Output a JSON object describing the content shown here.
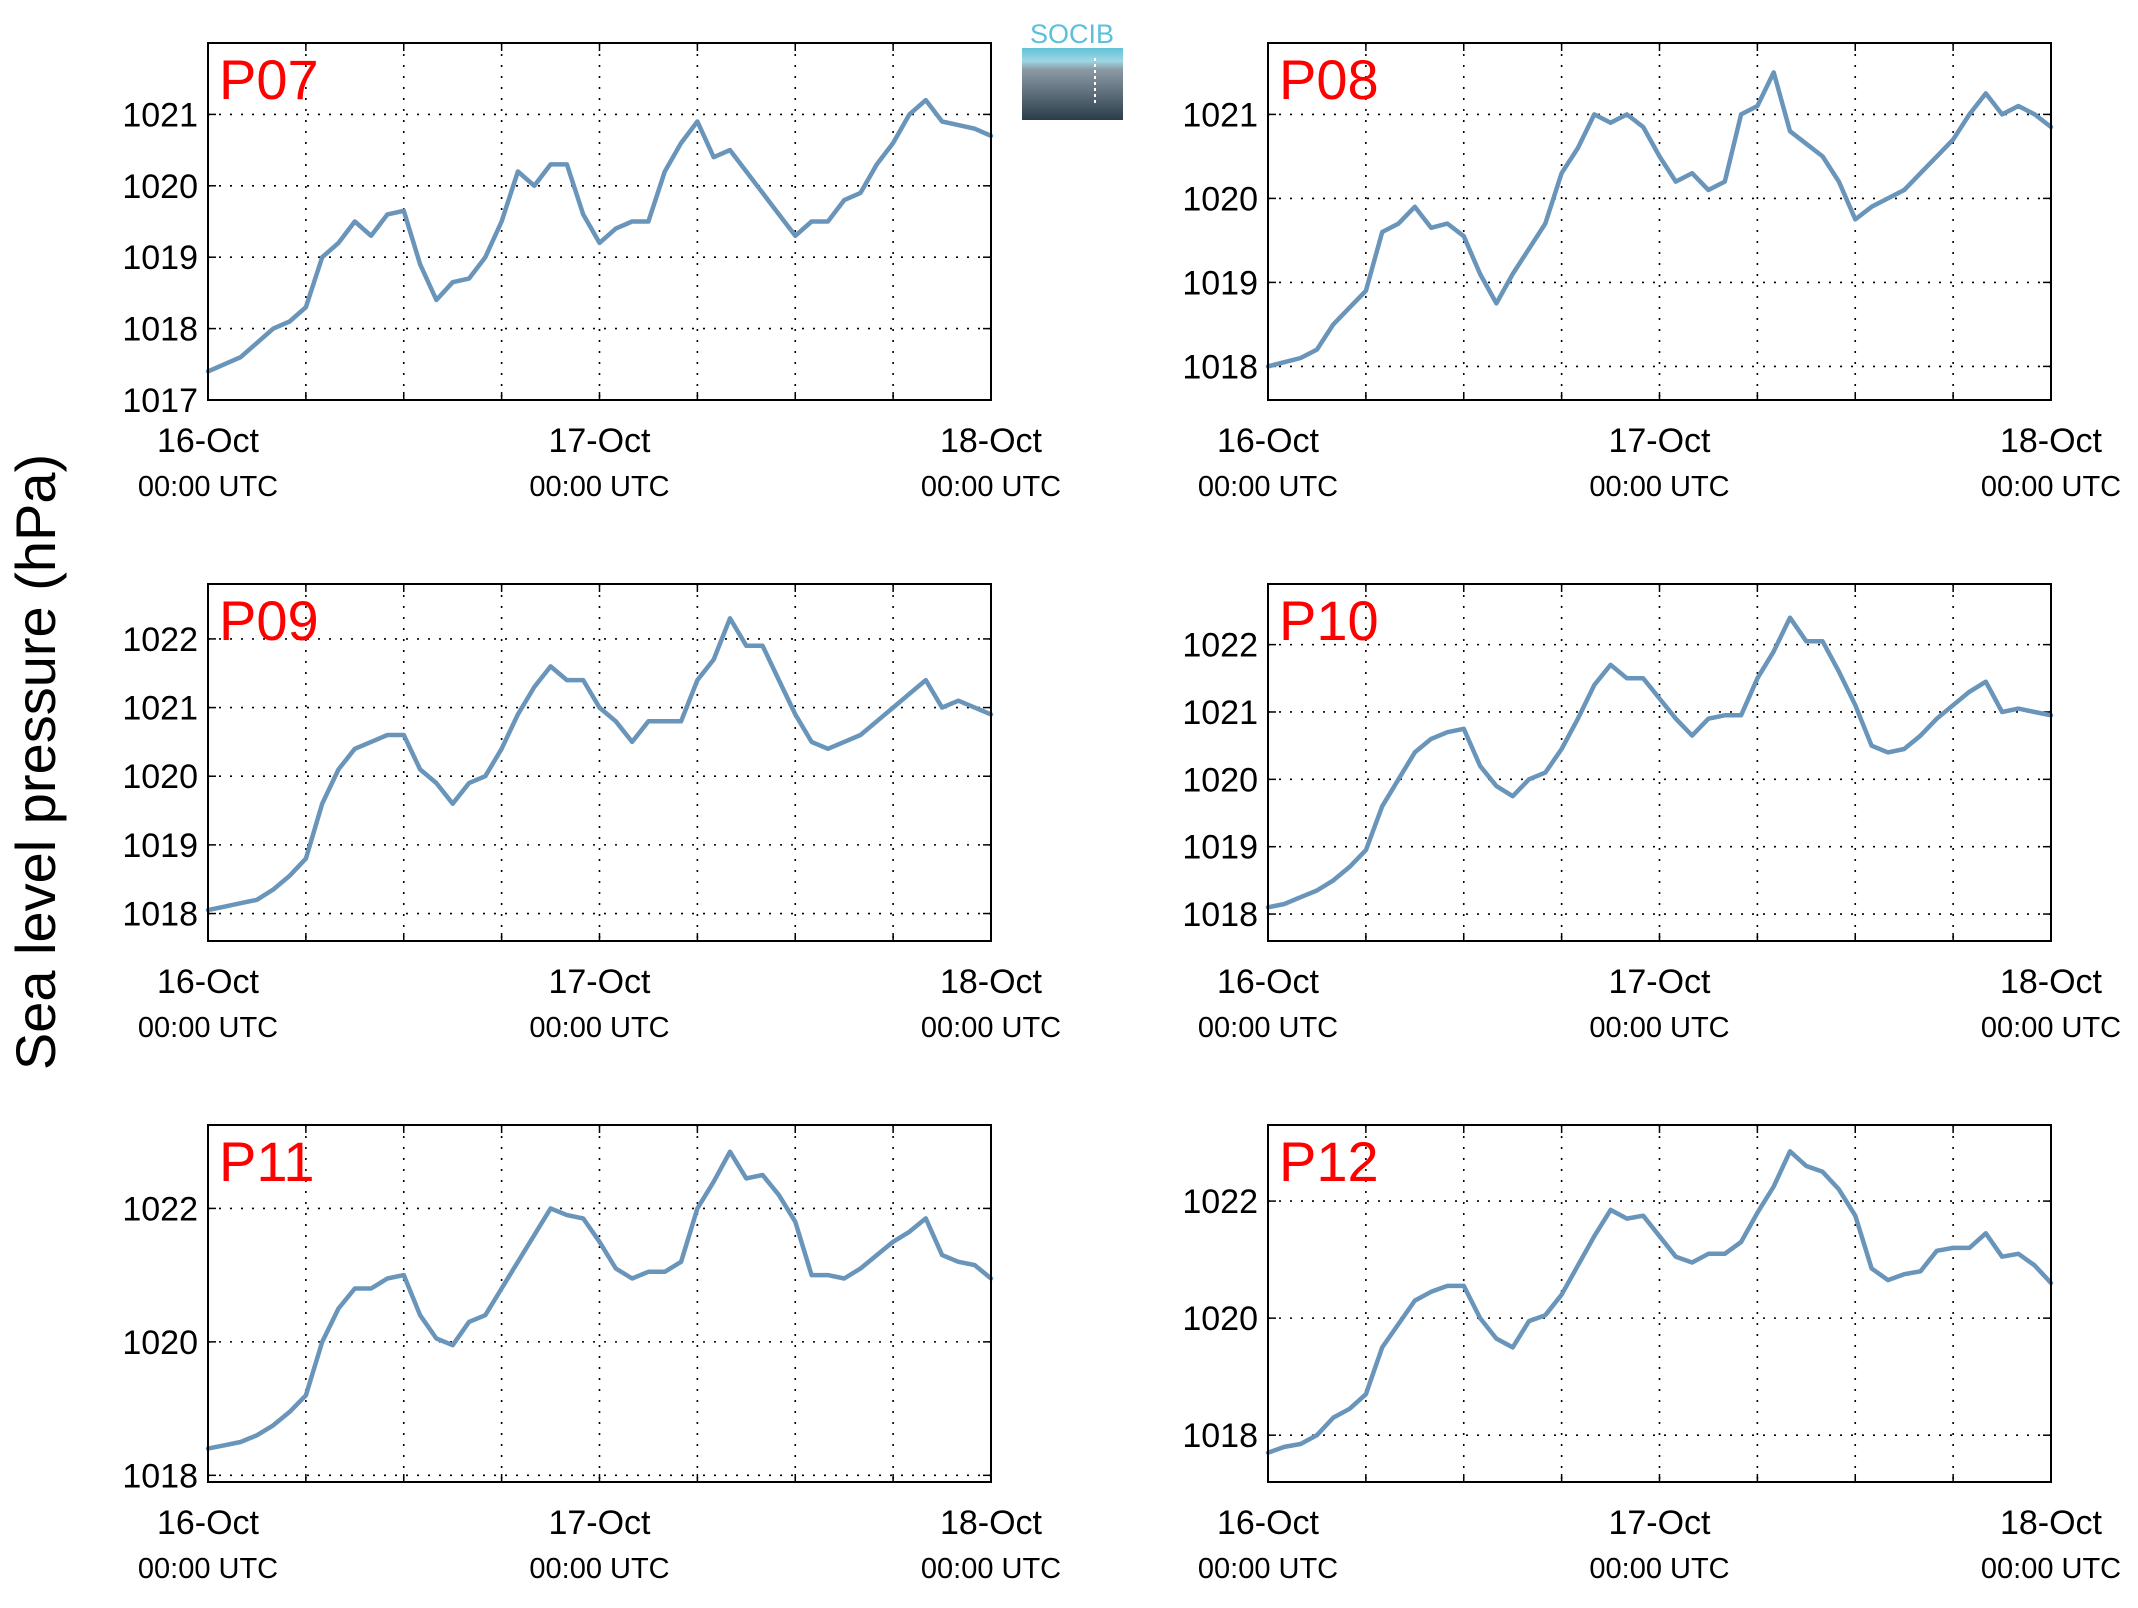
{
  "ylabel": "Sea level pressure (hPa)",
  "logo": {
    "text": "SOCIB"
  },
  "colors": {
    "line": "#6a95ba",
    "title": "#ff0000",
    "grid": "#000000",
    "logo_top": "#62c2d8",
    "logo_bottom": "#2b3d4a"
  },
  "chart_data": [
    {
      "type": "line",
      "title": "P07",
      "x_tick_labels": [
        "16-Oct",
        "17-Oct",
        "18-Oct"
      ],
      "x_tick_sublabels": [
        "00:00 UTC",
        "00:00 UTC",
        "00:00 UTC"
      ],
      "xlim": [
        0,
        48
      ],
      "ylim": [
        1017,
        1022
      ],
      "yticks": [
        1017,
        1018,
        1019,
        1020,
        1021
      ],
      "grid": true,
      "x": [
        0,
        1,
        2,
        3,
        4,
        5,
        6,
        7,
        8,
        9,
        10,
        11,
        12,
        13,
        14,
        15,
        16,
        17,
        18,
        19,
        20,
        21,
        22,
        23,
        24,
        25,
        26,
        27,
        28,
        29,
        30,
        31,
        32,
        33,
        34,
        35,
        36,
        37,
        38,
        39,
        40,
        41,
        42,
        43,
        44,
        45,
        46,
        47,
        48
      ],
      "y": [
        1017.4,
        1017.5,
        1017.6,
        1017.8,
        1018.0,
        1018.1,
        1018.3,
        1019.0,
        1019.2,
        1019.5,
        1019.3,
        1019.6,
        1019.65,
        1018.9,
        1018.4,
        1018.65,
        1018.7,
        1019.0,
        1019.5,
        1020.2,
        1020.0,
        1020.3,
        1020.3,
        1019.6,
        1019.2,
        1019.4,
        1019.5,
        1019.5,
        1020.2,
        1020.6,
        1020.9,
        1020.4,
        1020.5,
        1020.2,
        1019.9,
        1019.6,
        1019.3,
        1019.5,
        1019.5,
        1019.8,
        1019.9,
        1020.3,
        1020.6,
        1021.0,
        1021.2,
        1020.9,
        1020.85,
        1020.8,
        1020.7
      ]
    },
    {
      "type": "line",
      "title": "P08",
      "x_tick_labels": [
        "16-Oct",
        "17-Oct",
        "18-Oct"
      ],
      "x_tick_sublabels": [
        "00:00 UTC",
        "00:00 UTC",
        "00:00 UTC"
      ],
      "xlim": [
        0,
        48
      ],
      "ylim": [
        1017.6,
        1021.85
      ],
      "yticks": [
        1018,
        1019,
        1020,
        1021
      ],
      "grid": true,
      "x": [
        0,
        1,
        2,
        3,
        4,
        5,
        6,
        7,
        8,
        9,
        10,
        11,
        12,
        13,
        14,
        15,
        16,
        17,
        18,
        19,
        20,
        21,
        22,
        23,
        24,
        25,
        26,
        27,
        28,
        29,
        30,
        31,
        32,
        33,
        34,
        35,
        36,
        37,
        38,
        39,
        40,
        41,
        42,
        43,
        44,
        45,
        46,
        47,
        48
      ],
      "y": [
        1018.0,
        1018.05,
        1018.1,
        1018.2,
        1018.5,
        1018.7,
        1018.9,
        1019.6,
        1019.7,
        1019.9,
        1019.65,
        1019.7,
        1019.55,
        1019.1,
        1018.75,
        1019.1,
        1019.4,
        1019.7,
        1020.3,
        1020.6,
        1021.0,
        1020.9,
        1021.0,
        1020.85,
        1020.5,
        1020.2,
        1020.3,
        1020.1,
        1020.2,
        1021.0,
        1021.1,
        1021.5,
        1020.8,
        1020.65,
        1020.5,
        1020.2,
        1019.75,
        1019.9,
        1020.0,
        1020.1,
        1020.3,
        1020.5,
        1020.7,
        1021.0,
        1021.25,
        1021.0,
        1021.1,
        1021.0,
        1020.85
      ]
    },
    {
      "type": "line",
      "title": "P09",
      "x_tick_labels": [
        "16-Oct",
        "17-Oct",
        "18-Oct"
      ],
      "x_tick_sublabels": [
        "00:00 UTC",
        "00:00 UTC",
        "00:00 UTC"
      ],
      "xlim": [
        0,
        48
      ],
      "ylim": [
        1017.6,
        1022.8
      ],
      "yticks": [
        1018,
        1019,
        1020,
        1021,
        1022
      ],
      "grid": true,
      "x": [
        0,
        1,
        2,
        3,
        4,
        5,
        6,
        7,
        8,
        9,
        10,
        11,
        12,
        13,
        14,
        15,
        16,
        17,
        18,
        19,
        20,
        21,
        22,
        23,
        24,
        25,
        26,
        27,
        28,
        29,
        30,
        31,
        32,
        33,
        34,
        35,
        36,
        37,
        38,
        39,
        40,
        41,
        42,
        43,
        44,
        45,
        46,
        47,
        48
      ],
      "y": [
        1018.05,
        1018.1,
        1018.15,
        1018.2,
        1018.35,
        1018.55,
        1018.8,
        1019.6,
        1020.1,
        1020.4,
        1020.5,
        1020.6,
        1020.6,
        1020.1,
        1019.9,
        1019.6,
        1019.9,
        1020.0,
        1020.4,
        1020.9,
        1021.3,
        1021.6,
        1021.4,
        1021.4,
        1021.0,
        1020.8,
        1020.5,
        1020.8,
        1020.8,
        1020.8,
        1021.4,
        1021.7,
        1022.3,
        1021.9,
        1021.9,
        1021.4,
        1020.9,
        1020.5,
        1020.4,
        1020.5,
        1020.6,
        1020.8,
        1021.0,
        1021.2,
        1021.4,
        1021.0,
        1021.1,
        1021.0,
        1020.9
      ]
    },
    {
      "type": "line",
      "title": "P10",
      "x_tick_labels": [
        "16-Oct",
        "17-Oct",
        "18-Oct"
      ],
      "x_tick_sublabels": [
        "00:00 UTC",
        "00:00 UTC",
        "00:00 UTC"
      ],
      "xlim": [
        0,
        48
      ],
      "ylim": [
        1017.6,
        1022.9
      ],
      "yticks": [
        1018,
        1019,
        1020,
        1021,
        1022
      ],
      "grid": true,
      "x": [
        0,
        1,
        2,
        3,
        4,
        5,
        6,
        7,
        8,
        9,
        10,
        11,
        12,
        13,
        14,
        15,
        16,
        17,
        18,
        19,
        20,
        21,
        22,
        23,
        24,
        25,
        26,
        27,
        28,
        29,
        30,
        31,
        32,
        33,
        34,
        35,
        36,
        37,
        38,
        39,
        40,
        41,
        42,
        43,
        44,
        45,
        46,
        47,
        48
      ],
      "y": [
        1018.1,
        1018.15,
        1018.25,
        1018.35,
        1018.5,
        1018.7,
        1018.95,
        1019.6,
        1020.0,
        1020.4,
        1020.6,
        1020.7,
        1020.75,
        1020.2,
        1019.9,
        1019.75,
        1020.0,
        1020.1,
        1020.45,
        1020.9,
        1021.4,
        1021.7,
        1021.5,
        1021.5,
        1021.2,
        1020.9,
        1020.65,
        1020.9,
        1020.95,
        1020.95,
        1021.5,
        1021.9,
        1022.4,
        1022.05,
        1022.05,
        1021.6,
        1021.1,
        1020.5,
        1020.4,
        1020.45,
        1020.65,
        1020.9,
        1021.1,
        1021.3,
        1021.45,
        1021.0,
        1021.05,
        1021.0,
        1020.95
      ]
    },
    {
      "type": "line",
      "title": "P11",
      "x_tick_labels": [
        "16-Oct",
        "17-Oct",
        "18-Oct"
      ],
      "x_tick_sublabels": [
        "00:00 UTC",
        "00:00 UTC",
        "00:00 UTC"
      ],
      "xlim": [
        0,
        48
      ],
      "ylim": [
        1017.9,
        1023.25
      ],
      "yticks": [
        1018,
        1020,
        1022
      ],
      "grid": true,
      "x": [
        0,
        1,
        2,
        3,
        4,
        5,
        6,
        7,
        8,
        9,
        10,
        11,
        12,
        13,
        14,
        15,
        16,
        17,
        18,
        19,
        20,
        21,
        22,
        23,
        24,
        25,
        26,
        27,
        28,
        29,
        30,
        31,
        32,
        33,
        34,
        35,
        36,
        37,
        38,
        39,
        40,
        41,
        42,
        43,
        44,
        45,
        46,
        47,
        48
      ],
      "y": [
        1018.4,
        1018.45,
        1018.5,
        1018.6,
        1018.75,
        1018.95,
        1019.2,
        1020.0,
        1020.5,
        1020.8,
        1020.8,
        1020.95,
        1021.0,
        1020.4,
        1020.05,
        1019.95,
        1020.3,
        1020.4,
        1020.8,
        1021.2,
        1021.6,
        1022.0,
        1021.9,
        1021.85,
        1021.5,
        1021.1,
        1020.95,
        1021.05,
        1021.05,
        1021.2,
        1022.0,
        1022.4,
        1022.85,
        1022.45,
        1022.5,
        1022.2,
        1021.8,
        1021.0,
        1021.0,
        1020.95,
        1021.1,
        1021.3,
        1021.5,
        1021.65,
        1021.85,
        1021.3,
        1021.2,
        1021.15,
        1020.95
      ]
    },
    {
      "type": "line",
      "title": "P12",
      "x_tick_labels": [
        "16-Oct",
        "17-Oct",
        "18-Oct"
      ],
      "x_tick_sublabels": [
        "00:00 UTC",
        "00:00 UTC",
        "00:00 UTC"
      ],
      "xlim": [
        0,
        48
      ],
      "ylim": [
        1017.2,
        1023.3
      ],
      "yticks": [
        1018,
        1020,
        1022
      ],
      "grid": true,
      "x": [
        0,
        1,
        2,
        3,
        4,
        5,
        6,
        7,
        8,
        9,
        10,
        11,
        12,
        13,
        14,
        15,
        16,
        17,
        18,
        19,
        20,
        21,
        22,
        23,
        24,
        25,
        26,
        27,
        28,
        29,
        30,
        31,
        32,
        33,
        34,
        35,
        36,
        37,
        38,
        39,
        40,
        41,
        42,
        43,
        44,
        45,
        46,
        47,
        48
      ],
      "y": [
        1017.7,
        1017.8,
        1017.85,
        1018.0,
        1018.3,
        1018.45,
        1018.7,
        1019.5,
        1019.9,
        1020.3,
        1020.45,
        1020.55,
        1020.55,
        1020.0,
        1019.65,
        1019.5,
        1019.95,
        1020.05,
        1020.4,
        1020.9,
        1021.4,
        1021.85,
        1021.7,
        1021.75,
        1021.4,
        1021.05,
        1020.95,
        1021.1,
        1021.1,
        1021.3,
        1021.8,
        1022.25,
        1022.85,
        1022.6,
        1022.5,
        1022.2,
        1021.75,
        1020.85,
        1020.65,
        1020.75,
        1020.8,
        1021.15,
        1021.2,
        1021.2,
        1021.45,
        1021.05,
        1021.1,
        1020.9,
        1020.6
      ]
    }
  ]
}
